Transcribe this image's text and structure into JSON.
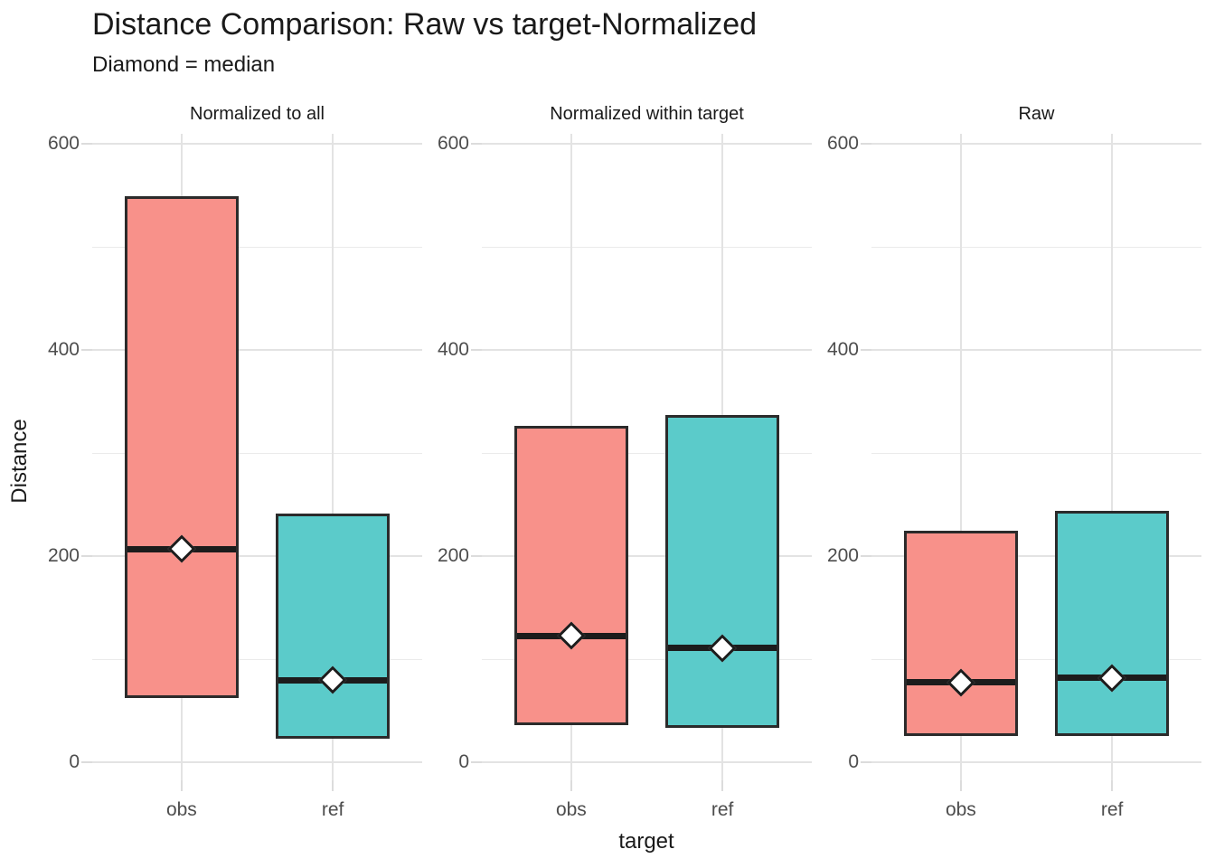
{
  "header": {
    "title": "Distance Comparison: Raw vs target-Normalized",
    "subtitle": "Diamond = median"
  },
  "axes": {
    "y_label": "Distance",
    "x_label": "target",
    "y_tick_labels": [
      "0",
      "200",
      "400",
      "600"
    ],
    "y_major_ticks": [
      0,
      200,
      400,
      600
    ],
    "y_minor_gridlines": [
      100,
      300,
      500
    ],
    "x_categories": [
      "obs",
      "ref"
    ]
  },
  "style": {
    "obs_fill": "#F8918A",
    "ref_fill": "#5BCBCA",
    "box_border": "#2B2B2B",
    "median_line": "#1C1C1C",
    "diamond_fill": "#FFFFFF",
    "diamond_border": "#1C1C1C",
    "grid_major": "#E3E3E3",
    "grid_minor": "#EBEBEB",
    "axis_tick": "#DCDCDC",
    "axis_text": "#4D4D4D",
    "title_text": "#1A1A1A",
    "background": "#FFFFFF"
  },
  "chart_data": {
    "type": "boxplot",
    "title": "Distance Comparison: Raw vs target-Normalized",
    "subtitle": "Diamond = median",
    "xlabel": "target",
    "ylabel": "Distance",
    "ylim": [
      0,
      600
    ],
    "y_major_ticks": [
      0,
      200,
      400,
      600
    ],
    "y_minor_gridlines": [
      100,
      300,
      500
    ],
    "grid": "on",
    "legend": "none",
    "marker_note": "white diamond marks the median on each box",
    "categories": [
      "obs",
      "ref"
    ],
    "facets": [
      {
        "label": "Normalized to all",
        "boxes": [
          {
            "target": "obs",
            "fill": "#F8918A",
            "lower": 64,
            "median": 207,
            "upper": 548
          },
          {
            "target": "ref",
            "fill": "#5BCBCA",
            "lower": 24,
            "median": 80,
            "upper": 240
          }
        ]
      },
      {
        "label": "Normalized within target",
        "boxes": [
          {
            "target": "obs",
            "fill": "#F8918A",
            "lower": 38,
            "median": 123,
            "upper": 325
          },
          {
            "target": "ref",
            "fill": "#5BCBCA",
            "lower": 35,
            "median": 111,
            "upper": 336
          }
        ]
      },
      {
        "label": "Raw",
        "boxes": [
          {
            "target": "obs",
            "fill": "#F8918A",
            "lower": 27,
            "median": 78,
            "upper": 224
          },
          {
            "target": "ref",
            "fill": "#5BCBCA",
            "lower": 27,
            "median": 82,
            "upper": 243
          }
        ]
      }
    ]
  }
}
